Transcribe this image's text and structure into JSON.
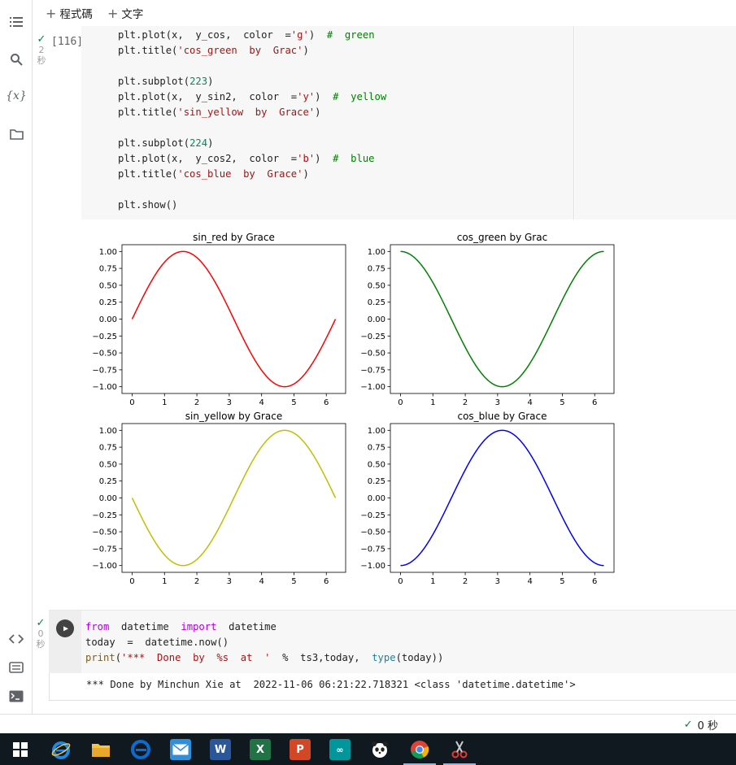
{
  "toolbar": {
    "add_code_label": "程式碼",
    "add_text_label": "文字"
  },
  "left_rail": {
    "icons": [
      "toc-icon",
      "search-icon",
      "variables-icon",
      "folder-icon",
      "code-snippets-icon",
      "command-palette-icon",
      "terminal-icon"
    ],
    "variables_glyph": "{x}"
  },
  "cell1": {
    "execution_count": "[116]",
    "exec_status_count": "2",
    "exec_status_unit": "秒",
    "code_lines": [
      "plt.plot(x,  y_cos,  color  ='g')  #  green",
      "plt.title('cos_green  by  Grac')",
      "",
      "plt.subplot(223)",
      "plt.plot(x,  y_sin2,  color  ='y')  #  yellow",
      "plt.title('sin_yellow  by  Grace')",
      "",
      "plt.subplot(224)",
      "plt.plot(x,  y_cos2,  color  ='b')  #  blue",
      "plt.title('cos_blue  by  Grace')",
      "",
      "plt.show()"
    ]
  },
  "chart_data": [
    {
      "type": "line",
      "title": "sin_red by Grace",
      "function": "sin",
      "color": "#ff0000",
      "x_range": [
        0,
        6.283
      ],
      "xlim": [
        -0.314,
        6.597
      ],
      "ylim": [
        -1.1,
        1.1
      ],
      "xticks": [
        "0",
        "1",
        "2",
        "3",
        "4",
        "5",
        "6"
      ],
      "yticks": [
        "1.00",
        "0.75",
        "0.50",
        "0.25",
        "0.00",
        "−0.25",
        "−0.50",
        "−0.75",
        "−1.00"
      ],
      "series": [
        {
          "values_desc": "y = sin(x)",
          "sample_x": [
            0,
            1.571,
            3.142,
            4.712,
            6.283
          ],
          "sample_y": [
            0,
            1,
            0,
            -1,
            0
          ]
        }
      ]
    },
    {
      "type": "line",
      "title": "cos_green by Grac",
      "function": "cos",
      "color": "#008000",
      "x_range": [
        0,
        6.283
      ],
      "xlim": [
        -0.314,
        6.597
      ],
      "ylim": [
        -1.1,
        1.1
      ],
      "xticks": [
        "0",
        "1",
        "2",
        "3",
        "4",
        "5",
        "6"
      ],
      "yticks": [
        "1.00",
        "0.75",
        "0.50",
        "0.25",
        "0.00",
        "−0.25",
        "−0.50",
        "−0.75",
        "−1.00"
      ],
      "series": [
        {
          "values_desc": "y = cos(x)",
          "sample_x": [
            0,
            1.571,
            3.142,
            4.712,
            6.283
          ],
          "sample_y": [
            1,
            0,
            -1,
            0,
            1
          ]
        }
      ]
    },
    {
      "type": "line",
      "title": "sin_yellow by Grace",
      "function": "neg_sin",
      "color": "#bfbf00",
      "x_range": [
        0,
        6.283
      ],
      "xlim": [
        -0.314,
        6.597
      ],
      "ylim": [
        -1.1,
        1.1
      ],
      "xticks": [
        "0",
        "1",
        "2",
        "3",
        "4",
        "5",
        "6"
      ],
      "yticks": [
        "1.00",
        "0.75",
        "0.50",
        "0.25",
        "0.00",
        "−0.25",
        "−0.50",
        "−0.75",
        "−1.00"
      ],
      "series": [
        {
          "values_desc": "y = -sin(x)",
          "sample_x": [
            0,
            1.571,
            3.142,
            4.712,
            6.283
          ],
          "sample_y": [
            0,
            -1,
            0,
            1,
            0
          ]
        }
      ]
    },
    {
      "type": "line",
      "title": "cos_blue by Grace",
      "function": "neg_cos",
      "color": "#0000ff",
      "x_range": [
        0,
        6.283
      ],
      "xlim": [
        -0.314,
        6.597
      ],
      "ylim": [
        -1.1,
        1.1
      ],
      "xticks": [
        "0",
        "1",
        "2",
        "3",
        "4",
        "5",
        "6"
      ],
      "yticks": [
        "1.00",
        "0.75",
        "0.50",
        "0.25",
        "0.00",
        "−0.25",
        "−0.50",
        "−0.75",
        "−1.00"
      ],
      "series": [
        {
          "values_desc": "y = -cos(x)",
          "sample_x": [
            0,
            1.571,
            3.142,
            4.712,
            6.283
          ],
          "sample_y": [
            -1,
            0,
            1,
            0,
            -1
          ]
        }
      ]
    }
  ],
  "cell2": {
    "exec_status_count": "0",
    "exec_status_unit": "秒",
    "code_lines": [
      "from  datetime  import  datetime",
      "today  =  datetime.now()",
      "print('***  Done  by  %s  at  '  %  ts3,today,  type(today))"
    ],
    "output": "*** Done by Minchun Xie at  2022-11-06 06:21:22.718321 <class 'datetime.datetime'>"
  },
  "status_bar": {
    "text": "0 秒"
  },
  "taskbar": {
    "apps": [
      "windows-start-icon",
      "internet-explorer-icon",
      "file-explorer-icon",
      "edge-icon",
      "mail-icon",
      "word-icon",
      "excel-icon",
      "powerpoint-icon",
      "arduino-icon",
      "panda-app-icon",
      "chrome-icon",
      "snipping-tool-icon"
    ],
    "colors": {
      "ie": "#1e88e5",
      "folder": "#f6c343",
      "edge": "#0a6cce",
      "mail": "#2f8fd8",
      "word": "#2b579a",
      "excel": "#217346",
      "powerpoint": "#d24726",
      "arduino": "#00979c"
    }
  }
}
